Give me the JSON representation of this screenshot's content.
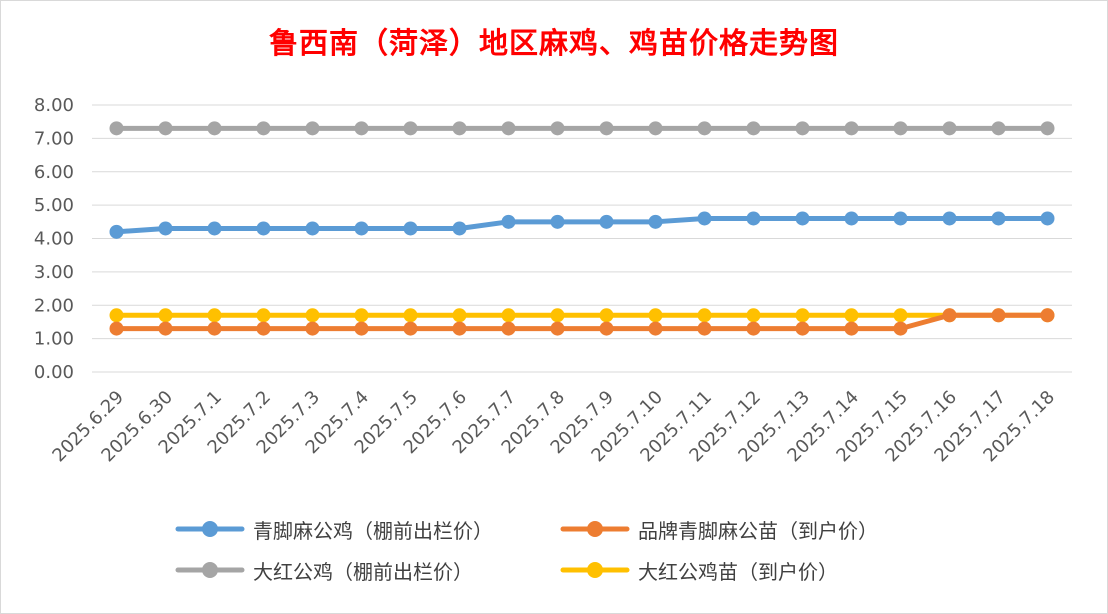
{
  "chart_data": {
    "type": "line",
    "title": "鲁西南（菏泽）地区麻鸡、鸡苗价格走势图",
    "xlabel": "",
    "ylabel": "",
    "ylim": [
      0,
      8
    ],
    "yticks": [
      "0.00",
      "1.00",
      "2.00",
      "3.00",
      "4.00",
      "5.00",
      "6.00",
      "7.00",
      "8.00"
    ],
    "grid": true,
    "legend_position": "bottom",
    "categories": [
      "2025.6.29",
      "2025.6.30",
      "2025.7.1",
      "2025.7.2",
      "2025.7.3",
      "2025.7.4",
      "2025.7.5",
      "2025.7.6",
      "2025.7.7",
      "2025.7.8",
      "2025.7.9",
      "2025.7.10",
      "2025.7.11",
      "2025.7.12",
      "2025.7.13",
      "2025.7.14",
      "2025.7.15",
      "2025.7.16",
      "2025.7.17",
      "2025.7.18"
    ],
    "series": [
      {
        "name": "青脚麻公鸡（棚前出栏价）",
        "color": "#5b9bd5",
        "values": [
          4.2,
          4.3,
          4.3,
          4.3,
          4.3,
          4.3,
          4.3,
          4.3,
          4.5,
          4.5,
          4.5,
          4.5,
          4.6,
          4.6,
          4.6,
          4.6,
          4.6,
          4.6,
          4.6,
          4.6
        ]
      },
      {
        "name": "品牌青脚麻公苗（到户价）",
        "color": "#ed7d31",
        "values": [
          1.3,
          1.3,
          1.3,
          1.3,
          1.3,
          1.3,
          1.3,
          1.3,
          1.3,
          1.3,
          1.3,
          1.3,
          1.3,
          1.3,
          1.3,
          1.3,
          1.3,
          1.7,
          1.7,
          1.7
        ]
      },
      {
        "name": "大红公鸡（棚前出栏价）",
        "color": "#a5a5a5",
        "values": [
          7.3,
          7.3,
          7.3,
          7.3,
          7.3,
          7.3,
          7.3,
          7.3,
          7.3,
          7.3,
          7.3,
          7.3,
          7.3,
          7.3,
          7.3,
          7.3,
          7.3,
          7.3,
          7.3,
          7.3
        ]
      },
      {
        "name": "大红公鸡苗（到户价）",
        "color": "#ffc000",
        "values": [
          1.7,
          1.7,
          1.7,
          1.7,
          1.7,
          1.7,
          1.7,
          1.7,
          1.7,
          1.7,
          1.7,
          1.7,
          1.7,
          1.7,
          1.7,
          1.7,
          1.7,
          1.7,
          1.7,
          1.7
        ]
      }
    ],
    "legend_order": [
      0,
      1,
      2,
      3
    ]
  }
}
